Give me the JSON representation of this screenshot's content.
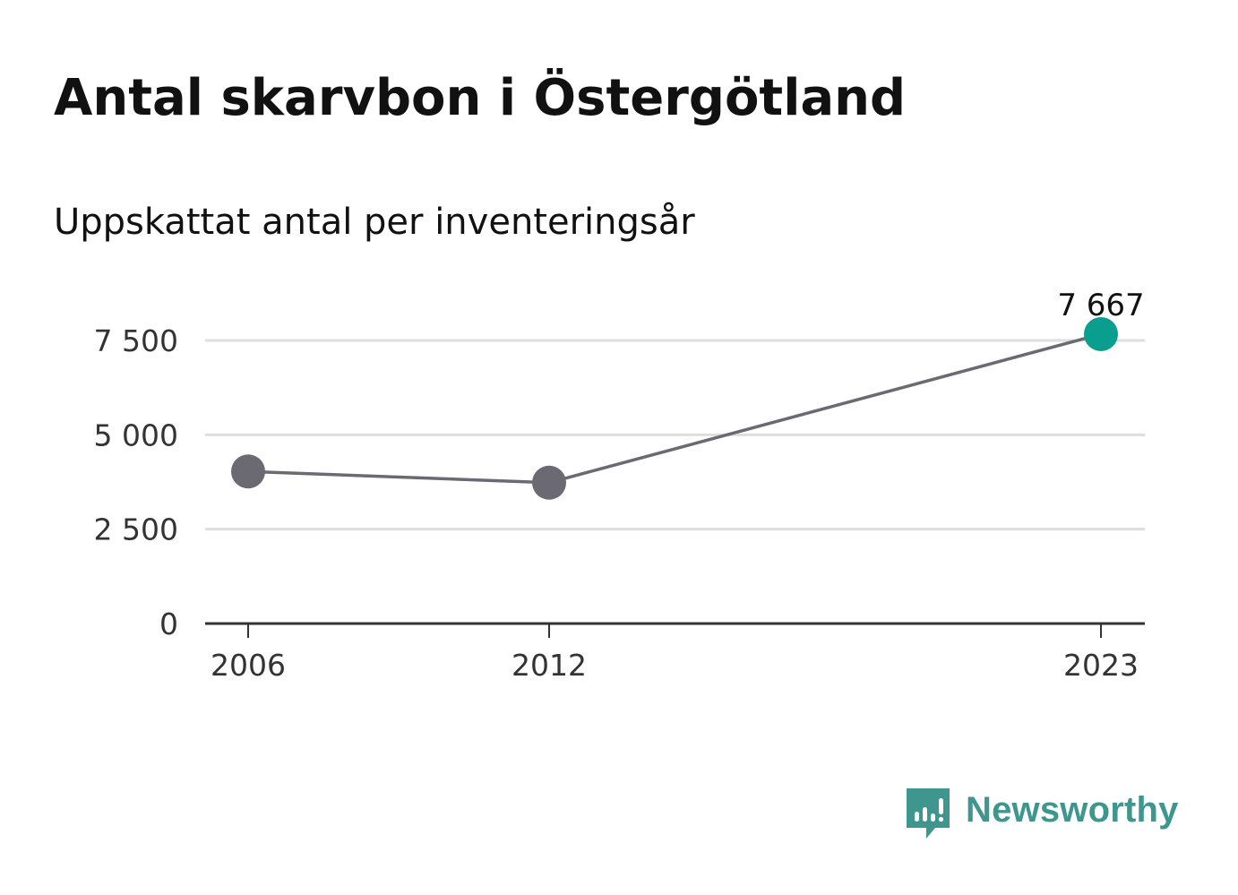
{
  "title": "Antal skarvbon i Östergötland",
  "subtitle": "Uppskattat antal per inventeringsår",
  "brand": {
    "name": "Newsworthy",
    "color": "#3f968f",
    "icon": "newsworthy-logo-icon"
  },
  "colors": {
    "line": "#6b6a72",
    "point": "#6b6a72",
    "highlight": "#0a9e8f",
    "grid": "#dedede",
    "axis": "#333333",
    "tick_text": "#333333"
  },
  "chart_data": {
    "type": "line",
    "x": [
      2006,
      2012,
      2023
    ],
    "x_tick_labels": [
      "2006",
      "2012",
      "2023"
    ],
    "series": [
      {
        "values": [
          4029,
          3732,
          7667
        ],
        "highlight_index": 2,
        "highlight_label": "7 667"
      }
    ],
    "y_ticks": [
      0,
      2500,
      5000,
      7500
    ],
    "y_tick_labels": [
      "0",
      "2 500",
      "5 000",
      "7 500"
    ],
    "ylim": [
      0,
      7500
    ],
    "grid": true,
    "xlabel": "",
    "ylabel": ""
  }
}
